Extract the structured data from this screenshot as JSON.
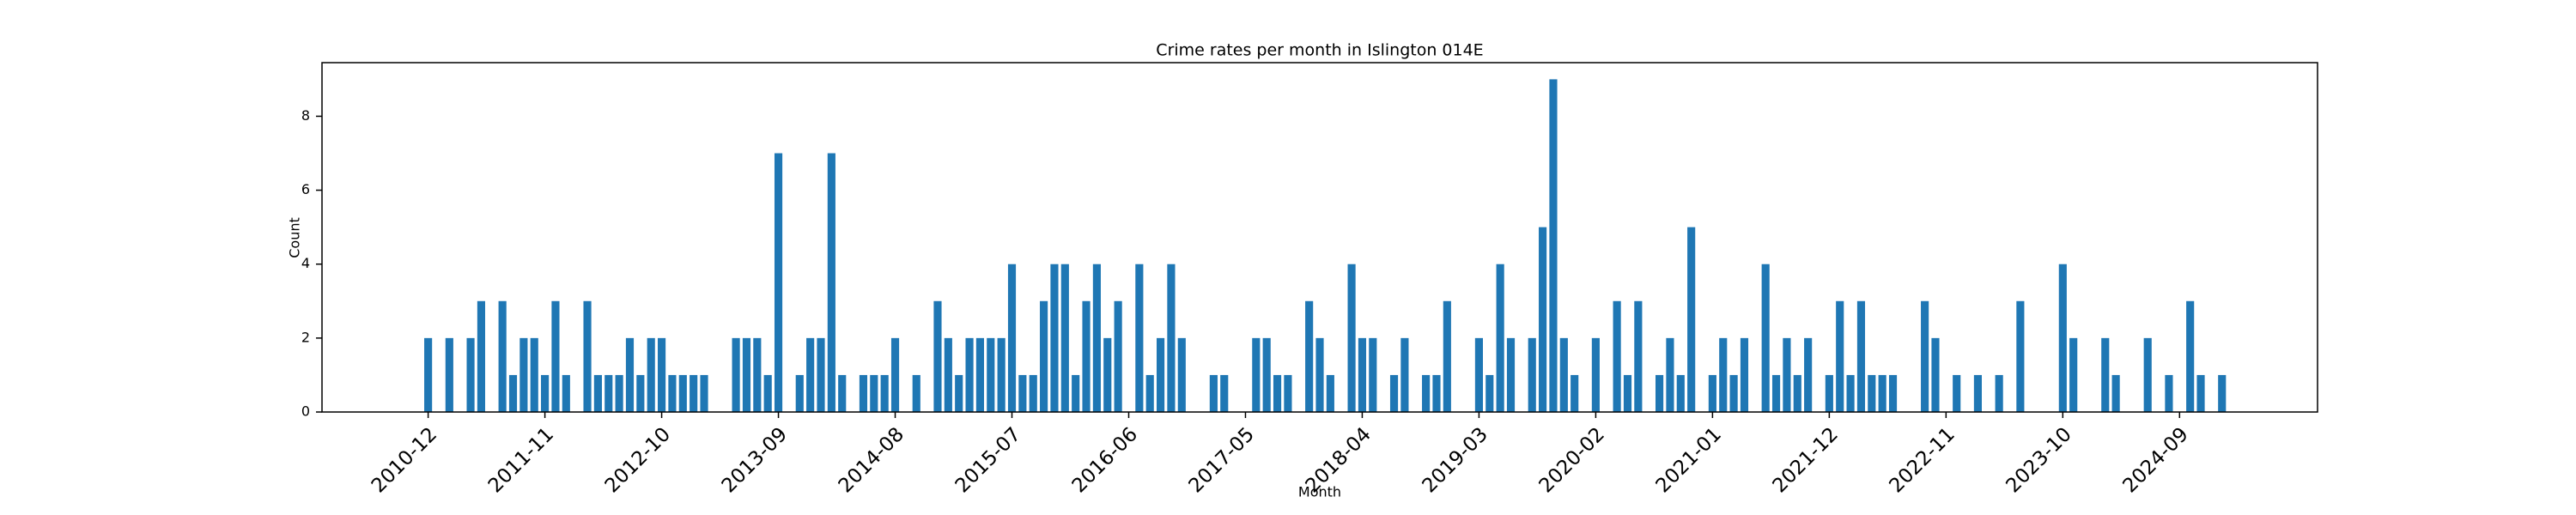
{
  "chart_data": {
    "type": "bar",
    "title": "Crime rates per month in Islington 014E",
    "xlabel": "Month",
    "ylabel": "Count",
    "color": "#1f77b4",
    "x": [
      "2010-12",
      "2011-02",
      "2011-04",
      "2011-05",
      "2011-07",
      "2011-08",
      "2011-09",
      "2011-10",
      "2011-11",
      "2011-12",
      "2012-01",
      "2012-03",
      "2012-04",
      "2012-05",
      "2012-06",
      "2012-07",
      "2012-08",
      "2012-09",
      "2012-10",
      "2012-11",
      "2012-12",
      "2013-01",
      "2013-02",
      "2013-05",
      "2013-06",
      "2013-07",
      "2013-08",
      "2013-09",
      "2013-11",
      "2013-12",
      "2014-01",
      "2014-02",
      "2014-03",
      "2014-05",
      "2014-06",
      "2014-07",
      "2014-08",
      "2014-10",
      "2014-12",
      "2015-01",
      "2015-02",
      "2015-03",
      "2015-04",
      "2015-05",
      "2015-06",
      "2015-07",
      "2015-08",
      "2015-09",
      "2015-10",
      "2015-11",
      "2015-12",
      "2016-01",
      "2016-02",
      "2016-03",
      "2016-04",
      "2016-05",
      "2016-07",
      "2016-08",
      "2016-09",
      "2016-10",
      "2016-11",
      "2017-02",
      "2017-03",
      "2017-06",
      "2017-07",
      "2017-08",
      "2017-09",
      "2017-11",
      "2017-12",
      "2018-01",
      "2018-03",
      "2018-04",
      "2018-05",
      "2018-07",
      "2018-08",
      "2018-10",
      "2018-11",
      "2018-12",
      "2019-03",
      "2019-04",
      "2019-05",
      "2019-06",
      "2019-08",
      "2019-09",
      "2019-10",
      "2019-11",
      "2019-12",
      "2020-02",
      "2020-04",
      "2020-05",
      "2020-06",
      "2020-08",
      "2020-09",
      "2020-10",
      "2020-11",
      "2021-01",
      "2021-02",
      "2021-03",
      "2021-04",
      "2021-06",
      "2021-07",
      "2021-08",
      "2021-09",
      "2021-10",
      "2021-12",
      "2022-01",
      "2022-02",
      "2022-03",
      "2022-04",
      "2022-05",
      "2022-06",
      "2022-09",
      "2022-10",
      "2022-12",
      "2023-02",
      "2023-04",
      "2023-06",
      "2023-10",
      "2023-11",
      "2024-02",
      "2024-03",
      "2024-06",
      "2024-08",
      "2024-10",
      "2024-11",
      "2025-01"
    ],
    "values": [
      2,
      2,
      2,
      3,
      3,
      1,
      2,
      2,
      1,
      3,
      1,
      3,
      1,
      1,
      1,
      2,
      1,
      2,
      2,
      1,
      1,
      1,
      1,
      2,
      2,
      2,
      1,
      7,
      1,
      2,
      2,
      7,
      1,
      1,
      1,
      1,
      2,
      1,
      3,
      2,
      1,
      2,
      2,
      2,
      2,
      4,
      1,
      1,
      3,
      4,
      4,
      1,
      3,
      4,
      2,
      3,
      4,
      1,
      2,
      4,
      2,
      1,
      1,
      2,
      2,
      1,
      1,
      3,
      2,
      1,
      4,
      2,
      2,
      1,
      2,
      1,
      1,
      3,
      2,
      1,
      4,
      2,
      2,
      5,
      9,
      2,
      1,
      2,
      3,
      1,
      3,
      1,
      2,
      1,
      5,
      1,
      2,
      1,
      2,
      4,
      1,
      2,
      1,
      2,
      1,
      3,
      1,
      3,
      1,
      1,
      1,
      3,
      2,
      1,
      1,
      1,
      3,
      4,
      2,
      2,
      1,
      2,
      1,
      3,
      1,
      1
    ],
    "xlim": [
      "2010-02",
      "2025-10"
    ],
    "xticks": [
      "2010-12",
      "2011-11",
      "2012-10",
      "2013-09",
      "2014-08",
      "2015-07",
      "2016-06",
      "2017-05",
      "2018-04",
      "2019-03",
      "2020-02",
      "2021-01",
      "2021-12",
      "2022-11",
      "2023-10",
      "2024-09"
    ],
    "ylim": [
      0,
      9.45
    ],
    "yticks": [
      0,
      2,
      4,
      6,
      8
    ]
  }
}
